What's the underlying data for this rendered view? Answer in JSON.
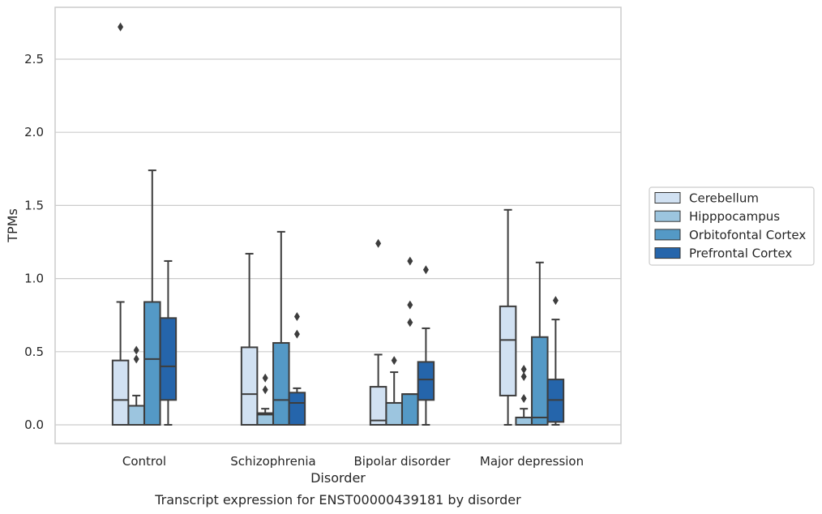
{
  "chart_data": {
    "type": "box",
    "title": "",
    "caption": "Transcript expression for ENST00000439181 by disorder",
    "xlabel": "Disorder",
    "ylabel": "TPMs",
    "ylim": [
      -0.13,
      2.87
    ],
    "yticks": [
      0.0,
      0.5,
      1.0,
      1.5,
      2.0,
      2.5
    ],
    "ytick_labels": [
      "0.0",
      "0.5",
      "1.0",
      "1.5",
      "2.0",
      "2.5"
    ],
    "grid": true,
    "legend_position": "right",
    "categories": [
      "Control",
      "Schizophrenia",
      "Bipolar disorder",
      "Major depression"
    ],
    "series": [
      {
        "name": "Cerebellum",
        "color": "#d1e1f2",
        "boxes": [
          {
            "whislo": 0.0,
            "q1": 0.0,
            "med": 0.17,
            "q3": 0.44,
            "whishi": 0.84,
            "fliers": [
              2.72
            ]
          },
          {
            "whislo": 0.0,
            "q1": 0.0,
            "med": 0.21,
            "q3": 0.53,
            "whishi": 1.17,
            "fliers": []
          },
          {
            "whislo": 0.0,
            "q1": 0.0,
            "med": 0.03,
            "q3": 0.26,
            "whishi": 0.48,
            "fliers": [
              1.24
            ]
          },
          {
            "whislo": 0.0,
            "q1": 0.2,
            "med": 0.58,
            "q3": 0.81,
            "whishi": 1.47,
            "fliers": []
          }
        ]
      },
      {
        "name": "Hipppocampus",
        "color": "#9cc5df",
        "boxes": [
          {
            "whislo": 0.0,
            "q1": 0.0,
            "med": 0.13,
            "q3": 0.13,
            "whishi": 0.2,
            "fliers": [
              0.45,
              0.51
            ]
          },
          {
            "whislo": 0.0,
            "q1": 0.0,
            "med": 0.07,
            "q3": 0.08,
            "whishi": 0.11,
            "fliers": [
              0.24,
              0.32
            ]
          },
          {
            "whislo": 0.0,
            "q1": 0.0,
            "med": 0.15,
            "q3": 0.15,
            "whishi": 0.36,
            "fliers": [
              0.44
            ]
          },
          {
            "whislo": 0.0,
            "q1": 0.0,
            "med": 0.05,
            "q3": 0.05,
            "whishi": 0.11,
            "fliers": [
              0.18,
              0.33,
              0.38
            ]
          }
        ]
      },
      {
        "name": "Orbitofontal Cortex",
        "color": "#5499c6",
        "boxes": [
          {
            "whislo": 0.0,
            "q1": 0.0,
            "med": 0.45,
            "q3": 0.84,
            "whishi": 1.74,
            "fliers": []
          },
          {
            "whislo": 0.0,
            "q1": 0.0,
            "med": 0.17,
            "q3": 0.56,
            "whishi": 1.32,
            "fliers": []
          },
          {
            "whislo": 0.0,
            "q1": 0.0,
            "med": 0.21,
            "q3": 0.21,
            "whishi": 0.21,
            "fliers": [
              0.7,
              0.82,
              1.12
            ]
          },
          {
            "whislo": 0.0,
            "q1": 0.0,
            "med": 0.05,
            "q3": 0.6,
            "whishi": 1.11,
            "fliers": []
          }
        ]
      },
      {
        "name": "Prefrontal Cortex",
        "color": "#2565ab",
        "boxes": [
          {
            "whislo": 0.0,
            "q1": 0.17,
            "med": 0.4,
            "q3": 0.73,
            "whishi": 1.12,
            "fliers": []
          },
          {
            "whislo": 0.0,
            "q1": 0.0,
            "med": 0.15,
            "q3": 0.22,
            "whishi": 0.25,
            "fliers": [
              0.62,
              0.74
            ]
          },
          {
            "whislo": 0.0,
            "q1": 0.17,
            "med": 0.31,
            "q3": 0.43,
            "whishi": 0.66,
            "fliers": [
              1.06
            ]
          },
          {
            "whislo": 0.0,
            "q1": 0.02,
            "med": 0.17,
            "q3": 0.31,
            "whishi": 0.72,
            "fliers": [
              0.85
            ]
          }
        ]
      }
    ],
    "style_colors": {
      "line": "#3d3d3d",
      "grid": "#cccccc",
      "spine": "#cccccc",
      "legend_border": "#cccccc"
    }
  }
}
